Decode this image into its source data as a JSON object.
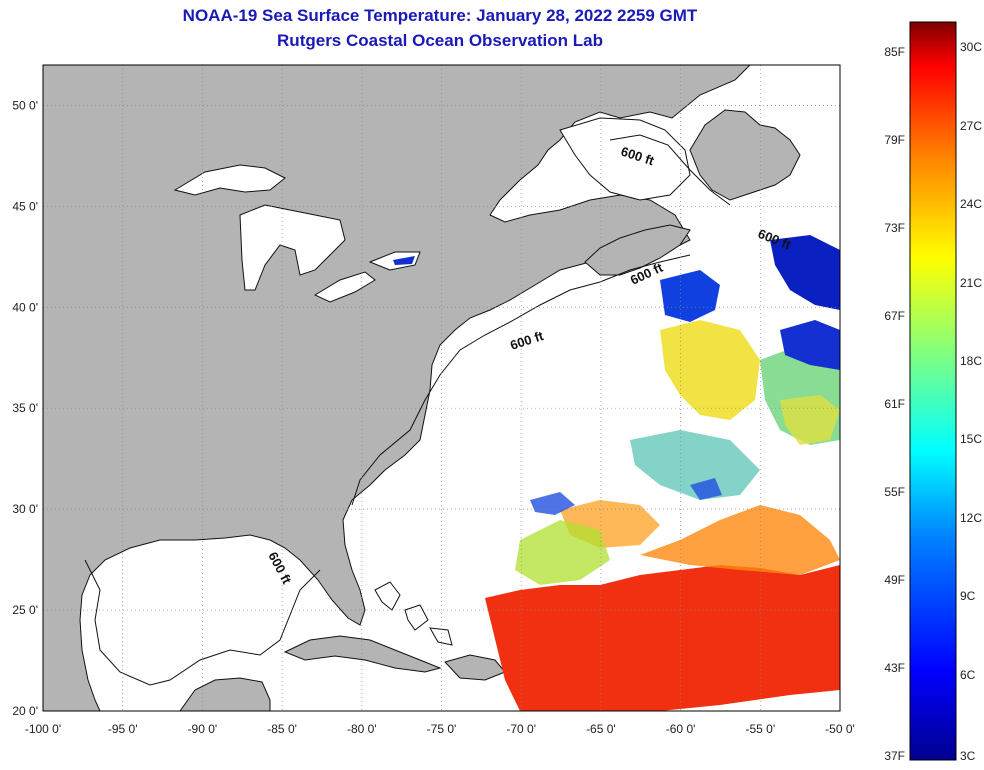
{
  "title": "NOAA-19 Sea Surface Temperature:  January 28, 2022 2259 GMT",
  "subtitle": "Rutgers Coastal Ocean Observation Lab",
  "map": {
    "lon_range": [
      -100,
      -50
    ],
    "lat_range": [
      20,
      52
    ],
    "lon_ticks": [
      "-100 0'",
      "-95 0'",
      "-90 0'",
      "-85 0'",
      "-80 0'",
      "-75 0'",
      "-70 0'",
      "-65 0'",
      "-60 0'",
      "-55 0'",
      "-50 0'"
    ],
    "lat_ticks": [
      "20 0'",
      "25 0'",
      "30 0'",
      "35 0'",
      "40 0'",
      "45 0'",
      "50 0'"
    ],
    "contour_labels": [
      "600 ft",
      "600 ft",
      "600 ft",
      "600 ft",
      "600 ft"
    ],
    "land_color": "#b4b4b4",
    "water_color": "#ffffff"
  },
  "colorbar": {
    "fahrenheit_labels": [
      "85F",
      "79F",
      "73F",
      "67F",
      "61F",
      "55F",
      "49F",
      "43F",
      "37F"
    ],
    "celsius_labels": [
      "30C",
      "27C",
      "24C",
      "21C",
      "18C",
      "15C",
      "12C",
      "9C",
      "6C",
      "3C"
    ],
    "colors": [
      "#00008f",
      "#0000ff",
      "#0080ff",
      "#00ffff",
      "#80ff80",
      "#ffff00",
      "#ff8000",
      "#ff0000",
      "#800000"
    ]
  }
}
